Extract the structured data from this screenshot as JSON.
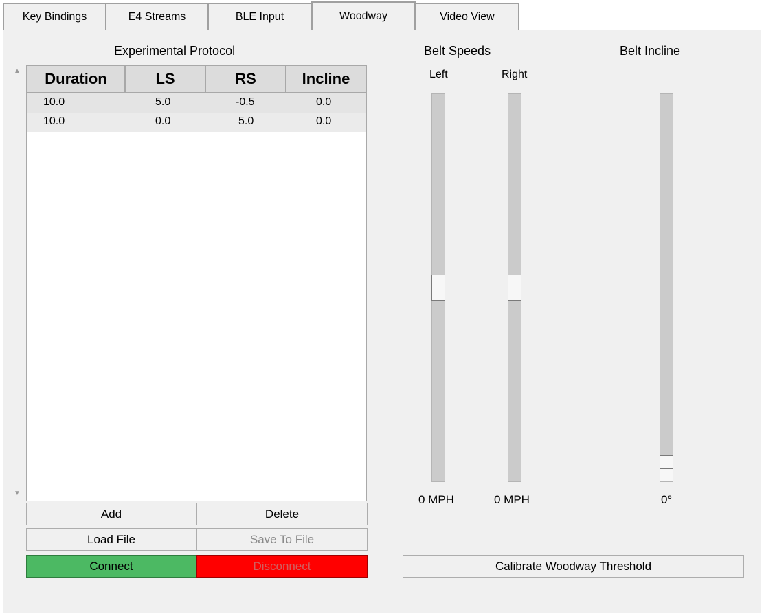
{
  "tabs": [
    {
      "label": "Key Bindings"
    },
    {
      "label": "E4 Streams"
    },
    {
      "label": "BLE Input"
    },
    {
      "label": "Woodway",
      "active": true
    },
    {
      "label": "Video View"
    }
  ],
  "protocol": {
    "title": "Experimental Protocol",
    "columns": [
      "Duration",
      "LS",
      "RS",
      "Incline"
    ],
    "rows": [
      [
        "10.0",
        "5.0",
        "-0.5",
        "0.0"
      ],
      [
        "10.0",
        "0.0",
        "5.0",
        "0.0"
      ]
    ]
  },
  "buttons": {
    "add": "Add",
    "delete": "Delete",
    "load_file": "Load File",
    "save_to_file": "Save To File",
    "connect": "Connect",
    "disconnect": "Disconnect",
    "calibrate": "Calibrate Woodway Threshold"
  },
  "belt_speeds": {
    "title": "Belt Speeds",
    "left": {
      "label": "Left",
      "readout": "0 MPH",
      "level": 0.5
    },
    "right": {
      "label": "Right",
      "readout": "0 MPH",
      "level": 0.5
    }
  },
  "belt_incline": {
    "title": "Belt Incline",
    "readout": "0°",
    "level": 0.0
  },
  "colors": {
    "connect": "#4cb963",
    "disconnect": "#ff0000"
  }
}
